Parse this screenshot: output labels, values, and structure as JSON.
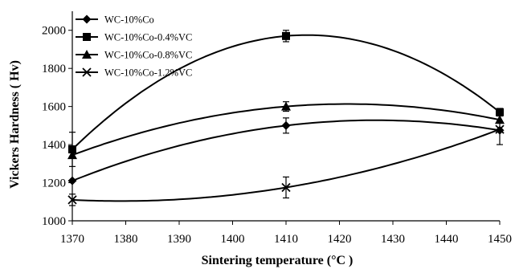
{
  "chart_data": {
    "type": "line",
    "title": "",
    "xlabel": "Sintering temperature (°C )",
    "ylabel": "Vickers Hardness ( Hv)",
    "xlim": [
      1370,
      1450
    ],
    "ylim": [
      1000,
      2100
    ],
    "x_ticks": [
      1370,
      1380,
      1390,
      1400,
      1410,
      1420,
      1430,
      1440,
      1450
    ],
    "y_ticks": [
      1000,
      1200,
      1400,
      1600,
      1800,
      2000
    ],
    "grid": false,
    "legend_position": "top-left",
    "line_color": "#000000",
    "series": [
      {
        "name": "WC-10%Co",
        "marker": "diamond",
        "points": [
          {
            "x": 1370,
            "y": 1210,
            "err": 0
          },
          {
            "x": 1410,
            "y": 1500,
            "err": 40
          },
          {
            "x": 1450,
            "y": 1475,
            "err": 0
          }
        ]
      },
      {
        "name": "WC-10%Co-0.4%VC",
        "marker": "square",
        "points": [
          {
            "x": 1370,
            "y": 1375,
            "err": 90
          },
          {
            "x": 1410,
            "y": 1970,
            "err": 30
          },
          {
            "x": 1450,
            "y": 1570,
            "err": 20
          }
        ]
      },
      {
        "name": "WC-10%Co-0.8%VC",
        "marker": "triangle",
        "points": [
          {
            "x": 1370,
            "y": 1345,
            "err": 0
          },
          {
            "x": 1410,
            "y": 1600,
            "err": 25
          },
          {
            "x": 1450,
            "y": 1530,
            "err": 0
          }
        ]
      },
      {
        "name": "WC-10%Co-1.2%VC",
        "marker": "x",
        "points": [
          {
            "x": 1370,
            "y": 1110,
            "err": 30
          },
          {
            "x": 1410,
            "y": 1175,
            "err": 55
          },
          {
            "x": 1450,
            "y": 1480,
            "err": 80
          }
        ]
      }
    ]
  }
}
